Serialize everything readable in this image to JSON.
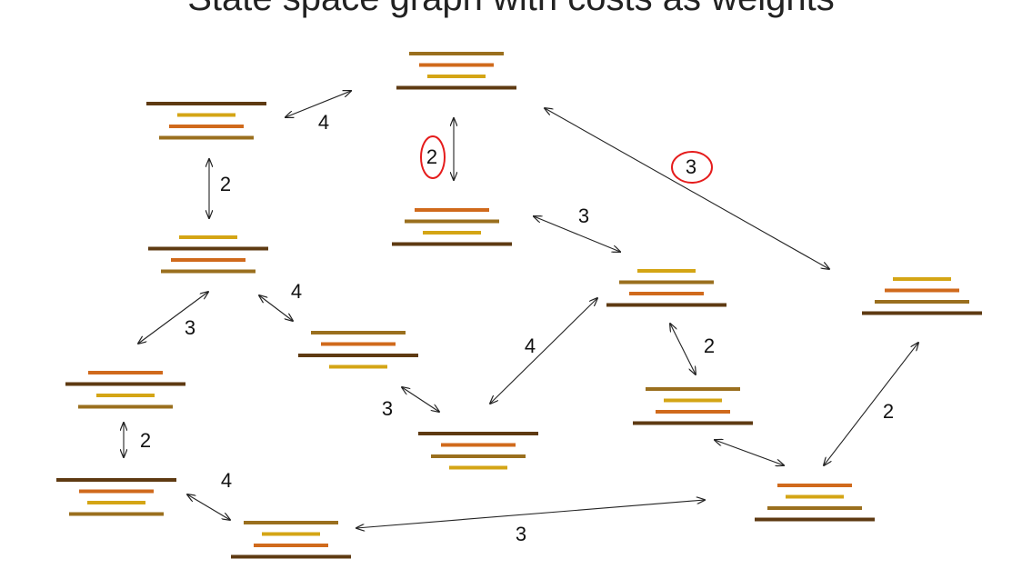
{
  "title": "State space graph with costs as weights",
  "colors": {
    "dark": "#5e3a12",
    "brown": "#9a6f1e",
    "orange": "#d06a1c",
    "gold": "#d4a515",
    "arrow": "#222222",
    "annotation": "#e51c1c"
  },
  "stack_order_legend": "each state drawn as a stack of 4 pancakes (top to bottom); widths in order: dark widest, brown, orange, gold smallest",
  "states": [
    {
      "id": "s-top",
      "pancakes": [
        "brown",
        "orange",
        "gold",
        "dark"
      ]
    },
    {
      "id": "s-left-top",
      "pancakes": [
        "dark",
        "gold",
        "orange",
        "brown"
      ]
    },
    {
      "id": "s-center-top",
      "pancakes": [
        "orange",
        "brown",
        "gold",
        "dark"
      ]
    },
    {
      "id": "s-left-mid",
      "pancakes": [
        "gold",
        "dark",
        "orange",
        "brown"
      ]
    },
    {
      "id": "s-center",
      "pancakes": [
        "gold",
        "brown",
        "orange",
        "dark"
      ]
    },
    {
      "id": "s-right",
      "pancakes": [
        "gold",
        "orange",
        "brown",
        "dark"
      ]
    },
    {
      "id": "s-mid-lower",
      "pancakes": [
        "brown",
        "orange",
        "dark",
        "gold"
      ]
    },
    {
      "id": "s-left-lower",
      "pancakes": [
        "orange",
        "dark",
        "gold",
        "brown"
      ]
    },
    {
      "id": "s-center-low",
      "pancakes": [
        "dark",
        "orange",
        "brown",
        "gold"
      ]
    },
    {
      "id": "s-right-mid",
      "pancakes": [
        "brown",
        "gold",
        "orange",
        "dark"
      ]
    },
    {
      "id": "s-left-bottom",
      "pancakes": [
        "dark",
        "orange",
        "gold",
        "brown"
      ]
    },
    {
      "id": "s-bottom",
      "pancakes": [
        "brown",
        "gold",
        "orange",
        "dark"
      ]
    },
    {
      "id": "s-right-bottom",
      "pancakes": [
        "orange",
        "gold",
        "brown",
        "dark"
      ]
    }
  ],
  "edges": [
    {
      "id": "e1",
      "from": "s-left-top",
      "to": "s-top",
      "cost": "4",
      "circled": false
    },
    {
      "id": "e2",
      "from": "s-top",
      "to": "s-center-top",
      "cost": "2",
      "circled": true
    },
    {
      "id": "e3",
      "from": "s-top",
      "to": "s-right",
      "cost": "3",
      "circled": true
    },
    {
      "id": "e4",
      "from": "s-left-top",
      "to": "s-left-mid",
      "cost": "2",
      "circled": false
    },
    {
      "id": "e5",
      "from": "s-center-top",
      "to": "s-center",
      "cost": "3",
      "circled": false
    },
    {
      "id": "e6",
      "from": "s-left-mid",
      "to": "s-left-lower",
      "cost": "3",
      "circled": false
    },
    {
      "id": "e7",
      "from": "s-left-mid",
      "to": "s-mid-lower",
      "cost": "4",
      "circled": false
    },
    {
      "id": "e8",
      "from": "s-center",
      "to": "s-center-low",
      "cost": "4",
      "circled": false
    },
    {
      "id": "e9",
      "from": "s-center",
      "to": "s-right-mid",
      "cost": "2",
      "circled": false
    },
    {
      "id": "e10",
      "from": "s-mid-lower",
      "to": "s-center-low",
      "cost": "3",
      "circled": false
    },
    {
      "id": "e11",
      "from": "s-left-lower",
      "to": "s-left-bottom",
      "cost": "2",
      "circled": false
    },
    {
      "id": "e12",
      "from": "s-right",
      "to": "s-right-bottom",
      "cost": "2",
      "circled": false
    },
    {
      "id": "e13",
      "from": "s-left-bottom",
      "to": "s-bottom",
      "cost": "4",
      "circled": false
    },
    {
      "id": "e14",
      "from": "s-bottom",
      "to": "s-right-bottom",
      "cost": "3",
      "circled": false
    },
    {
      "id": "e15",
      "from": "s-right-mid",
      "to": "s-right-bottom",
      "cost": "",
      "circled": false
    }
  ]
}
